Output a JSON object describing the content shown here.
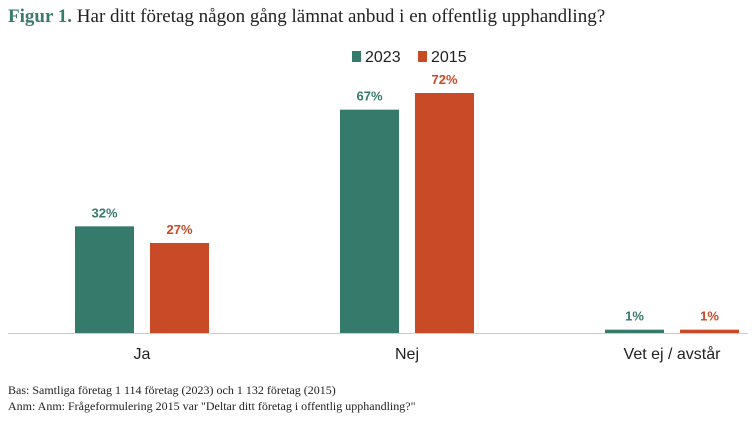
{
  "title": {
    "prefix": "Figur 1.",
    "text": "Har ditt företag någon gång lämnat anbud i en offentlig upphandling?"
  },
  "colors": {
    "series_2023": "#367a6c",
    "series_2015": "#c84a26",
    "axis": "#cccccc",
    "text": "#222222"
  },
  "chart_data": {
    "type": "bar",
    "categories": [
      "Ja",
      "Nej",
      "Vet ej / avstår"
    ],
    "series": [
      {
        "name": "2023",
        "values": [
          32,
          67,
          1
        ],
        "labels": [
          "32%",
          "67%",
          "1%"
        ]
      },
      {
        "name": "2015",
        "values": [
          27,
          72,
          1
        ],
        "labels": [
          "27%",
          "72%",
          "1%"
        ]
      }
    ],
    "ylim": [
      0,
      75
    ],
    "legend": "top-center",
    "grid": false
  },
  "notes": {
    "base": "Bas: Samtliga företag 1 114 företag (2023) och 1 132 företag (2015)",
    "anm": "Anm: Anm: Frågeformulering 2015 var \"Deltar ditt företag i offentlig upphandling?\""
  }
}
